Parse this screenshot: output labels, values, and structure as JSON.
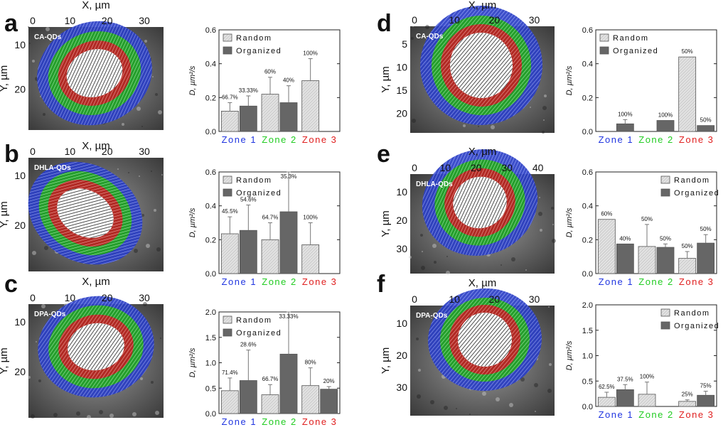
{
  "figure": {
    "panels": [
      {
        "letter": "a",
        "sample": "CA-QDs",
        "x_axis_label": "X, µm",
        "y_axis_label": "Y, µm",
        "x_ticks": [
          "0",
          "10",
          "20",
          "30"
        ],
        "y_ticks": [
          "10",
          "20"
        ]
      },
      {
        "letter": "b",
        "sample": "DHLA-QDs",
        "x_axis_label": "X, µm",
        "y_axis_label": "Y, µm",
        "x_ticks": [
          "0",
          "10",
          "20",
          "30"
        ],
        "y_ticks": [
          "10",
          "20"
        ]
      },
      {
        "letter": "c",
        "sample": "DPA-QDs",
        "x_axis_label": "X, µm",
        "y_axis_label": "Y, µm",
        "x_ticks": [
          "0",
          "10",
          "20",
          "30"
        ],
        "y_ticks": [
          "10",
          "20"
        ]
      },
      {
        "letter": "d",
        "sample": "CA-QDs",
        "x_axis_label": "X, µm",
        "y_axis_label": "Y, µm",
        "x_ticks": [
          "0",
          "10",
          "20",
          "30"
        ],
        "y_ticks": [
          "5",
          "10",
          "15",
          "20"
        ]
      },
      {
        "letter": "e",
        "sample": "DHLA-QDs",
        "x_axis_label": "X, µm",
        "y_axis_label": "Y, µm",
        "x_ticks": [
          "0",
          "10",
          "20",
          "30",
          "40"
        ],
        "y_ticks": [
          "10",
          "20",
          "30"
        ]
      },
      {
        "letter": "f",
        "sample": "DPA-QDs",
        "x_axis_label": "X, µm",
        "y_axis_label": "Y, µm",
        "x_ticks": [
          "0",
          "10",
          "20",
          "30"
        ],
        "y_ticks": [
          "10",
          "20",
          "30"
        ]
      }
    ],
    "zone_colors": {
      "zone_1": "#2b3fc4",
      "zone_2": "#2eb82e",
      "zone_3": "#d93030",
      "core": "#f2f2f2"
    }
  },
  "chart_data": [
    {
      "type": "bar",
      "panel": "a",
      "categories": [
        "Zone 1",
        "Zone 2",
        "Zone 3"
      ],
      "category_colors": [
        "#2035e0",
        "#22cc22",
        "#e02020"
      ],
      "ylabel": "D, µm²/s",
      "ylim": [
        0,
        0.6
      ],
      "yticks": [
        "0.0",
        "0.2",
        "0.4",
        "0.6"
      ],
      "legend_position": "top-left",
      "series": [
        {
          "name": "Random",
          "values": [
            0.12,
            0.22,
            0.3
          ],
          "errors": [
            0.05,
            0.1,
            0.13
          ],
          "labels": [
            "66.7%",
            "60%",
            "100%"
          ],
          "color": "#d9d9d9"
        },
        {
          "name": "Organized",
          "values": [
            0.15,
            0.17,
            null
          ],
          "errors": [
            0.06,
            0.1,
            null
          ],
          "labels": [
            "33.33%",
            "40%",
            ""
          ],
          "color": "#666666"
        }
      ]
    },
    {
      "type": "bar",
      "panel": "b",
      "categories": [
        "Zone 1",
        "Zone 2",
        "Zone 3"
      ],
      "category_colors": [
        "#2035e0",
        "#22cc22",
        "#e02020"
      ],
      "ylabel": "D, µm²/s",
      "ylim": [
        0,
        0.6
      ],
      "yticks": [
        "0.0",
        "0.2",
        "0.4",
        "0.6"
      ],
      "legend_position": "top-left",
      "series": [
        {
          "name": "Random",
          "values": [
            0.235,
            0.2,
            0.17
          ],
          "errors": [
            0.1,
            0.1,
            0.13
          ],
          "labels": [
            "45.5%",
            "64.7%",
            "100%"
          ],
          "color": "#d9d9d9"
        },
        {
          "name": "Organized",
          "values": [
            0.255,
            0.365,
            null
          ],
          "errors": [
            0.15,
            0.24,
            null
          ],
          "labels": [
            "54.6%",
            "35.3%",
            ""
          ],
          "color": "#666666"
        }
      ]
    },
    {
      "type": "bar",
      "panel": "c",
      "categories": [
        "Zone 1",
        "Zone 2",
        "Zone 3"
      ],
      "category_colors": [
        "#2035e0",
        "#22cc22",
        "#e02020"
      ],
      "ylabel": "D, µm²/s",
      "ylim": [
        0,
        2.0
      ],
      "yticks": [
        "0.0",
        "0.5",
        "1.0",
        "1.5",
        "2.0"
      ],
      "legend_position": "top-left",
      "series": [
        {
          "name": "Random",
          "values": [
            0.45,
            0.37,
            0.55
          ],
          "errors": [
            0.25,
            0.2,
            0.35
          ],
          "labels": [
            "71.4%",
            "66.7%",
            "80%"
          ],
          "color": "#d9d9d9"
        },
        {
          "name": "Organized",
          "values": [
            0.65,
            1.17,
            0.48
          ],
          "errors": [
            0.6,
            0.83,
            0.05
          ],
          "labels": [
            "28.6%",
            "33.33%",
            "20%"
          ],
          "color": "#666666"
        }
      ]
    },
    {
      "type": "bar",
      "panel": "d",
      "categories": [
        "Zone 1",
        "Zone 2",
        "Zone 3"
      ],
      "category_colors": [
        "#2035e0",
        "#22cc22",
        "#e02020"
      ],
      "ylabel": "D, µm²/s",
      "ylim": [
        0,
        0.6
      ],
      "yticks": [
        "0.0",
        "0.2",
        "0.4",
        "0.6"
      ],
      "legend_position": "top-left",
      "series": [
        {
          "name": "Random",
          "values": [
            null,
            null,
            0.44
          ],
          "errors": [
            null,
            null,
            0
          ],
          "labels": [
            "",
            "",
            "50%"
          ],
          "color": "#d9d9d9"
        },
        {
          "name": "Organized",
          "values": [
            0.045,
            0.065,
            0.035
          ],
          "errors": [
            0.025,
            0.0,
            0.0
          ],
          "labels": [
            "100%",
            "100%",
            "50%"
          ],
          "color": "#666666"
        }
      ]
    },
    {
      "type": "bar",
      "panel": "e",
      "categories": [
        "Zone 1",
        "Zone 2",
        "Zone 3"
      ],
      "category_colors": [
        "#2035e0",
        "#22cc22",
        "#e02020"
      ],
      "ylabel": "D, µm²/s",
      "ylim": [
        0,
        0.6
      ],
      "yticks": [
        "0.0",
        "0.2",
        "0.4",
        "0.6"
      ],
      "legend_position": "top-right",
      "series": [
        {
          "name": "Random",
          "values": [
            0.32,
            0.16,
            0.09
          ],
          "errors": [
            0.0,
            0.13,
            0.04
          ],
          "labels": [
            "60%",
            "50%",
            "50%"
          ],
          "color": "#d9d9d9"
        },
        {
          "name": "Organized",
          "values": [
            0.175,
            0.155,
            0.18
          ],
          "errors": [
            0.0,
            0.02,
            0.05
          ],
          "labels": [
            "40%",
            "50%",
            "50%"
          ],
          "color": "#666666"
        }
      ]
    },
    {
      "type": "bar",
      "panel": "f",
      "categories": [
        "Zone 1",
        "Zone 2",
        "Zone 3"
      ],
      "category_colors": [
        "#2035e0",
        "#22cc22",
        "#e02020"
      ],
      "ylabel": "D, µm²/s",
      "ylim": [
        0,
        2.0
      ],
      "yticks": [
        "0.0",
        "0.5",
        "1.0",
        "1.5",
        "2.0"
      ],
      "legend_position": "top-right",
      "series": [
        {
          "name": "Random",
          "values": [
            0.18,
            0.24,
            0.1
          ],
          "errors": [
            0.1,
            0.24,
            0.03
          ],
          "labels": [
            "62.5%",
            "100%",
            "25%"
          ],
          "color": "#d9d9d9"
        },
        {
          "name": "Organized",
          "values": [
            0.33,
            null,
            0.22
          ],
          "errors": [
            0.1,
            null,
            0.08
          ],
          "labels": [
            "37.5%",
            "",
            "75%"
          ],
          "color": "#666666"
        }
      ]
    }
  ]
}
